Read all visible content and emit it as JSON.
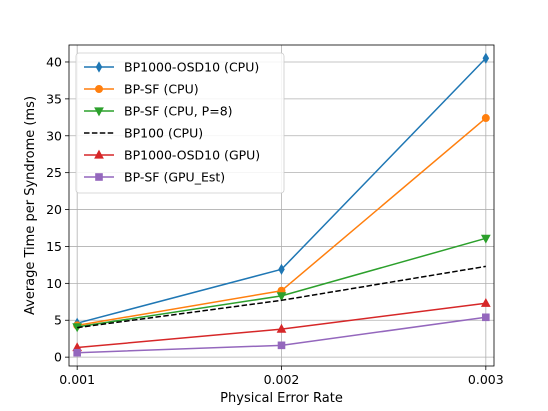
{
  "chart_data": {
    "type": "line",
    "title": "",
    "xlabel": "Physical Error Rate",
    "ylabel": "Average Time per Syndrome (ms)",
    "x": [
      0.001,
      0.002,
      0.003
    ],
    "x_tick_labels": [
      "0.001",
      "0.002",
      "0.003"
    ],
    "xlim": [
      0.00096,
      0.00304
    ],
    "ylim": [
      -1.2,
      42.3
    ],
    "y_ticks": [
      0,
      5,
      10,
      15,
      20,
      25,
      30,
      35,
      40
    ],
    "y_tick_labels": [
      "0",
      "5",
      "10",
      "15",
      "20",
      "25",
      "30",
      "35",
      "40"
    ],
    "grid": true,
    "legend_position": "top-left",
    "series": [
      {
        "name": "BP1000-OSD10 (CPU)",
        "values": [
          4.6,
          11.9,
          40.5
        ],
        "color": "#1f77b4",
        "marker": "thin-diamond",
        "linestyle": "solid"
      },
      {
        "name": "BP-SF (CPU)",
        "values": [
          4.3,
          9.0,
          32.4
        ],
        "color": "#ff7f0e",
        "marker": "circle",
        "linestyle": "solid"
      },
      {
        "name": "BP-SF (CPU, P=8)",
        "values": [
          4.1,
          8.3,
          16.1
        ],
        "color": "#2ca02c",
        "marker": "triangle-down",
        "linestyle": "solid"
      },
      {
        "name": "BP100 (CPU)",
        "values": [
          4.0,
          7.7,
          12.3
        ],
        "color": "#000000",
        "marker": "none",
        "linestyle": "dashed"
      },
      {
        "name": "BP1000-OSD10 (GPU)",
        "values": [
          1.3,
          3.8,
          7.3
        ],
        "color": "#d62728",
        "marker": "triangle-up",
        "linestyle": "solid"
      },
      {
        "name": "BP-SF (GPU_Est)",
        "values": [
          0.6,
          1.6,
          5.4
        ],
        "color": "#9467bd",
        "marker": "square",
        "linestyle": "solid"
      }
    ]
  }
}
